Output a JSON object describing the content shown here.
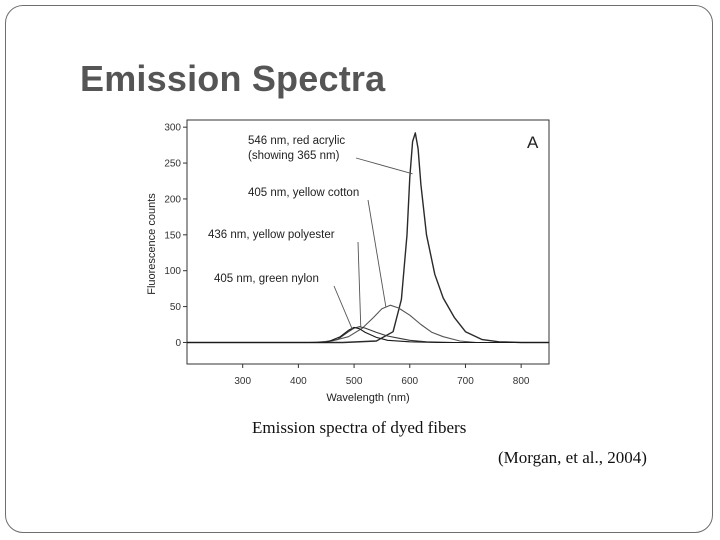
{
  "slide": {
    "title": "Emission Spectra",
    "caption": "Emission spectra of dyed fibers",
    "citation": "(Morgan, et al., 2004)"
  },
  "chart_data": {
    "type": "line",
    "title": "",
    "panel_label": "A",
    "xlabel": "Wavelength (nm)",
    "ylabel": "Fluorescence counts",
    "xlim": [
      200,
      850
    ],
    "ylim": [
      -30,
      310
    ],
    "xticks": [
      300,
      400,
      500,
      600,
      700,
      800
    ],
    "yticks": [
      0,
      50,
      100,
      150,
      200,
      250,
      300
    ],
    "grid": false,
    "legend": "none",
    "series": [
      {
        "name": "546 nm, red acrylic (showing 365 nm)",
        "x": [
          200,
          400,
          480,
          540,
          570,
          585,
          595,
          600,
          605,
          610,
          615,
          620,
          630,
          645,
          660,
          680,
          700,
          730,
          760,
          800,
          850
        ],
        "y": [
          0,
          0,
          0,
          2,
          15,
          60,
          150,
          230,
          280,
          292,
          270,
          220,
          150,
          95,
          62,
          35,
          15,
          4,
          1,
          0,
          0
        ]
      },
      {
        "name": "405 nm, yellow cotton",
        "x": [
          200,
          420,
          460,
          490,
          515,
          535,
          550,
          565,
          580,
          600,
          620,
          640,
          660,
          690,
          720,
          760,
          850
        ],
        "y": [
          0,
          0,
          2,
          8,
          20,
          35,
          47,
          52,
          48,
          38,
          25,
          14,
          8,
          2,
          0,
          0,
          0
        ]
      },
      {
        "name": "436 nm, yellow polyester",
        "x": [
          200,
          440,
          470,
          490,
          500,
          510,
          520,
          540,
          560,
          580,
          600,
          630,
          680,
          850
        ],
        "y": [
          0,
          0,
          4,
          15,
          20,
          22,
          20,
          14,
          9,
          6,
          3,
          1,
          0,
          0
        ]
      },
      {
        "name": "405 nm, green nylon",
        "x": [
          200,
          450,
          475,
          490,
          500,
          510,
          520,
          540,
          560,
          600,
          650,
          850
        ],
        "y": [
          0,
          0,
          8,
          17,
          21,
          19,
          14,
          7,
          3,
          1,
          0,
          0
        ]
      }
    ],
    "annotations": [
      {
        "lines": [
          "546 nm, red acrylic",
          "(showing 365 nm)"
        ],
        "target": [
          605,
          235
        ]
      },
      {
        "lines": [
          "405 nm, yellow cotton"
        ],
        "target": [
          557,
          50
        ]
      },
      {
        "lines": [
          "436 nm, yellow polyester"
        ],
        "target": [
          512,
          22
        ]
      },
      {
        "lines": [
          "405 nm, green nylon"
        ],
        "target": [
          497,
          18
        ]
      }
    ]
  }
}
